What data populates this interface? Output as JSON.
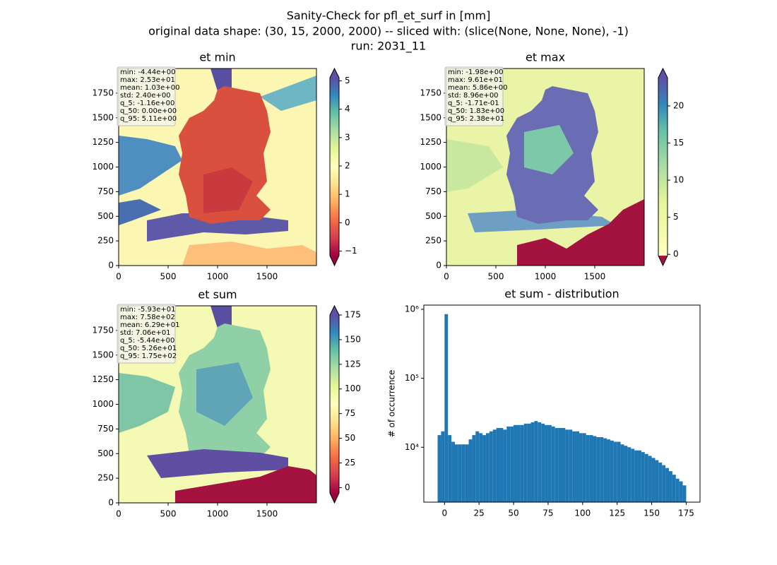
{
  "suptitle": [
    "Sanity-Check for pfl_et_surf in [mm]",
    "original data shape: (30, 15, 2000, 2000) -- sliced with: (slice(None, None, None), -1)",
    "run: 2031_11"
  ],
  "chart_data": [
    {
      "type": "image",
      "title": "et min",
      "xlim": [
        0,
        2000
      ],
      "ylim": [
        0,
        2000
      ],
      "xticks": [
        0,
        500,
        1000,
        1500
      ],
      "yticks": [
        0,
        250,
        500,
        750,
        1000,
        1250,
        1500,
        1750
      ],
      "stats": [
        "min: -4.44e+00",
        "max: 2.53e+01",
        "mean: 1.03e+00",
        "std: 2.40e+00",
        "q_5: -1.16e+00",
        "q_50: 0.00e+00",
        "q_95: 5.11e+00"
      ],
      "clim": [
        -1.16,
        5.11
      ],
      "cticks": [
        {
          "value": -1,
          "label": "−1"
        },
        0,
        1,
        2,
        3,
        4,
        5
      ]
    },
    {
      "type": "image",
      "title": "et max",
      "xlim": [
        0,
        2000
      ],
      "ylim": [
        0,
        2000
      ],
      "xticks": [
        0,
        500,
        1000,
        1500
      ],
      "yticks": [
        0,
        250,
        500,
        750,
        1000,
        1250,
        1500,
        1750
      ],
      "stats": [
        "min: -1.98e+00",
        "max: 9.61e+01",
        "mean: 5.86e+00",
        "std: 8.96e+00",
        "q_5: -1.71e-01",
        "q_50: 1.83e+00",
        "q_95: 2.38e+01"
      ],
      "clim": [
        -0.171,
        23.8
      ],
      "cticks": [
        0,
        5,
        10,
        15,
        20
      ]
    },
    {
      "type": "image",
      "title": "et sum",
      "xlim": [
        0,
        2000
      ],
      "ylim": [
        0,
        2000
      ],
      "xticks": [
        0,
        500,
        1000,
        1500
      ],
      "yticks": [
        0,
        250,
        500,
        750,
        1000,
        1250,
        1500,
        1750
      ],
      "stats": [
        "min: -5.93e+01",
        "max: 7.58e+02",
        "mean: 6.29e+01",
        "std: 7.06e+01",
        "q_5: -5.44e+00",
        "q_50: 5.26e+01",
        "q_95: 1.75e+02"
      ],
      "clim": [
        -5.44,
        175
      ],
      "cticks": [
        0,
        25,
        50,
        75,
        100,
        125,
        150,
        175
      ]
    },
    {
      "type": "histogram",
      "title": "et sum - distribution",
      "ylabel": "# of occurrence",
      "color": "#1f77b4",
      "log_y": true,
      "xlim": [
        -15,
        185
      ],
      "ylim": [
        1600,
        1150000
      ],
      "xticks": [
        0,
        25,
        50,
        75,
        100,
        125,
        150,
        175
      ],
      "yticks": [
        {
          "value": 10000,
          "label": "10⁴"
        },
        {
          "value": 100000,
          "label": "10⁵"
        },
        {
          "value": 1000000,
          "label": "10⁶"
        }
      ],
      "bins": [
        -5,
        -2.5,
        0,
        2.5,
        5,
        7.5,
        10,
        12.5,
        15,
        17.5,
        20,
        22.5,
        25,
        27.5,
        30,
        32.5,
        35,
        37.5,
        40,
        42.5,
        45,
        47.5,
        50,
        52.5,
        55,
        57.5,
        60,
        62.5,
        65,
        67.5,
        70,
        72.5,
        75,
        77.5,
        80,
        82.5,
        85,
        87.5,
        90,
        92.5,
        95,
        97.5,
        100,
        102.5,
        105,
        107.5,
        110,
        112.5,
        115,
        117.5,
        120,
        122.5,
        125,
        127.5,
        130,
        132.5,
        135,
        137.5,
        140,
        142.5,
        145,
        147.5,
        150,
        152.5,
        155,
        157.5,
        160,
        162.5,
        165,
        167.5,
        170,
        172.5,
        175
      ],
      "counts": [
        15000,
        17000,
        850000,
        15000,
        12000,
        11000,
        11000,
        11000,
        11000,
        13000,
        15000,
        17000,
        16000,
        15000,
        16000,
        17000,
        18000,
        19000,
        19000,
        18000,
        20000,
        20000,
        21000,
        21000,
        21000,
        22000,
        22000,
        23000,
        24000,
        23000,
        22000,
        21000,
        21000,
        20000,
        19000,
        19000,
        19000,
        18000,
        18000,
        17000,
        17000,
        16000,
        16000,
        15000,
        15000,
        14500,
        14000,
        14000,
        13500,
        13000,
        12500,
        12000,
        12000,
        11000,
        10500,
        10000,
        9500,
        9000,
        9000,
        8500,
        8000,
        7500,
        7000,
        6500,
        6000,
        5500,
        5000,
        4500,
        4000,
        3500,
        3200,
        2800
      ]
    }
  ]
}
